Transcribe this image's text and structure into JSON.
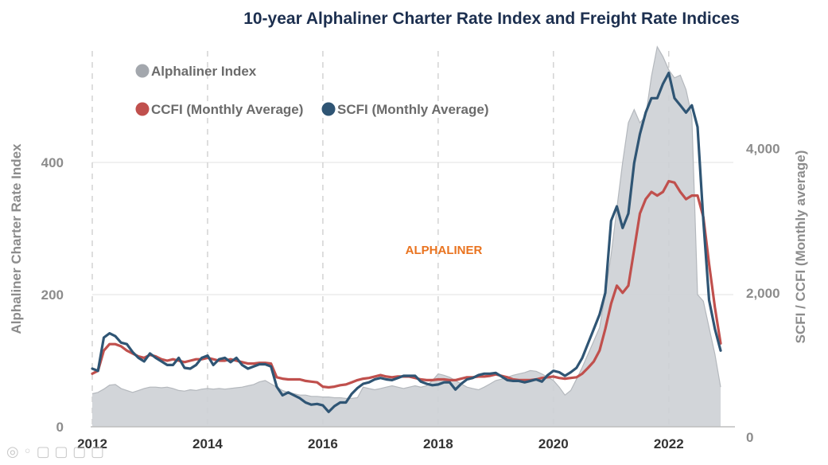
{
  "chart_data": {
    "type": "line",
    "title": "10-year Alphaliner Charter Rate Index and Freight Rate Indices",
    "ylabel_left": "Alphaliner Charter Rate Index",
    "ylabel_right": "SCFI / CCFI (Monthly average)",
    "ylim_left": [
      0,
      600
    ],
    "ylim_right": [
      0,
      5200
    ],
    "xlim": [
      2012,
      2022.9
    ],
    "x_ticks": [
      "2012",
      "2014",
      "2016",
      "2018",
      "2020",
      "2022"
    ],
    "y_left_ticks": [
      "0",
      "200",
      "400"
    ],
    "y_right_ticks": [
      "0",
      "2,000",
      "4,000"
    ],
    "legend": [
      {
        "label": "Alphaliner Index",
        "color": "#a3a7ad"
      },
      {
        "label": "CCFI (Monthly Average)",
        "color": "#c0504d"
      },
      {
        "label": "SCFI (Monthly Average)",
        "color": "#2f5574"
      }
    ],
    "watermark": "ALPHALINER",
    "series": [
      {
        "name": "Alphaliner Index",
        "axis": "left",
        "color": "#a3a7ad",
        "x": [
          2012.0,
          2012.1,
          2012.2,
          2012.3,
          2012.4,
          2012.5,
          2012.6,
          2012.7,
          2012.8,
          2012.9,
          2013.0,
          2013.1,
          2013.2,
          2013.3,
          2013.4,
          2013.5,
          2013.6,
          2013.7,
          2013.8,
          2013.9,
          2014.0,
          2014.1,
          2014.2,
          2014.3,
          2014.4,
          2014.5,
          2014.6,
          2014.7,
          2014.8,
          2014.9,
          2015.0,
          2015.1,
          2015.2,
          2015.3,
          2015.4,
          2015.5,
          2015.6,
          2015.7,
          2015.8,
          2015.9,
          2016.0,
          2016.1,
          2016.2,
          2016.3,
          2016.4,
          2016.5,
          2016.6,
          2016.7,
          2016.8,
          2016.9,
          2017.0,
          2017.1,
          2017.2,
          2017.3,
          2017.4,
          2017.5,
          2017.6,
          2017.7,
          2017.8,
          2017.9,
          2018.0,
          2018.1,
          2018.2,
          2018.3,
          2018.4,
          2018.5,
          2018.6,
          2018.7,
          2018.8,
          2018.9,
          2019.0,
          2019.1,
          2019.2,
          2019.3,
          2019.4,
          2019.5,
          2019.6,
          2019.7,
          2019.8,
          2019.9,
          2020.0,
          2020.1,
          2020.2,
          2020.3,
          2020.4,
          2020.5,
          2020.6,
          2020.7,
          2020.8,
          2020.9,
          2021.0,
          2021.1,
          2021.2,
          2021.3,
          2021.4,
          2021.5,
          2021.6,
          2021.7,
          2021.8,
          2021.9,
          2022.0,
          2022.1,
          2022.2,
          2022.3,
          2022.4,
          2022.5,
          2022.6,
          2022.7,
          2022.8,
          2022.9
        ],
        "values": [
          50,
          52,
          57,
          63,
          64,
          58,
          55,
          52,
          55,
          58,
          60,
          60,
          59,
          60,
          58,
          55,
          54,
          56,
          55,
          57,
          58,
          57,
          58,
          57,
          58,
          59,
          60,
          62,
          64,
          68,
          70,
          65,
          60,
          55,
          52,
          50,
          48,
          48,
          46,
          46,
          45,
          45,
          44,
          44,
          43,
          43,
          44,
          60,
          58,
          56,
          58,
          60,
          62,
          60,
          58,
          60,
          62,
          60,
          62,
          70,
          80,
          78,
          75,
          70,
          65,
          60,
          58,
          56,
          60,
          65,
          70,
          72,
          75,
          78,
          80,
          82,
          85,
          84,
          80,
          75,
          70,
          60,
          48,
          55,
          72,
          90,
          110,
          130,
          150,
          200,
          260,
          330,
          400,
          460,
          480,
          460,
          470,
          530,
          575,
          560,
          540,
          528,
          532,
          510,
          470,
          200,
          190,
          150,
          110,
          60
        ]
      },
      {
        "name": "CCFI (Monthly Average)",
        "axis": "right",
        "color": "#c0504d",
        "x": [
          2012.0,
          2012.1,
          2012.2,
          2012.3,
          2012.4,
          2012.5,
          2012.6,
          2012.7,
          2012.8,
          2012.9,
          2013.0,
          2013.1,
          2013.2,
          2013.3,
          2013.4,
          2013.5,
          2013.6,
          2013.7,
          2013.8,
          2013.9,
          2014.0,
          2014.1,
          2014.2,
          2014.3,
          2014.4,
          2014.5,
          2014.6,
          2014.7,
          2014.8,
          2014.9,
          2015.0,
          2015.1,
          2015.2,
          2015.3,
          2015.4,
          2015.5,
          2015.6,
          2015.7,
          2015.8,
          2015.9,
          2016.0,
          2016.1,
          2016.2,
          2016.3,
          2016.4,
          2016.5,
          2016.6,
          2016.7,
          2016.8,
          2016.9,
          2017.0,
          2017.1,
          2017.2,
          2017.3,
          2017.4,
          2017.5,
          2017.6,
          2017.7,
          2017.8,
          2017.9,
          2018.0,
          2018.1,
          2018.2,
          2018.3,
          2018.4,
          2018.5,
          2018.6,
          2018.7,
          2018.8,
          2018.9,
          2019.0,
          2019.1,
          2019.2,
          2019.3,
          2019.4,
          2019.5,
          2019.6,
          2019.7,
          2019.8,
          2019.9,
          2020.0,
          2020.1,
          2020.2,
          2020.3,
          2020.4,
          2020.5,
          2020.6,
          2020.7,
          2020.8,
          2020.9,
          2021.0,
          2021.1,
          2021.2,
          2021.3,
          2021.4,
          2021.5,
          2021.6,
          2021.7,
          2021.8,
          2021.9,
          2022.0,
          2022.1,
          2022.2,
          2022.3,
          2022.4,
          2022.5,
          2022.6,
          2022.7,
          2022.8,
          2022.9
        ],
        "values": [
          880,
          920,
          1200,
          1290,
          1290,
          1260,
          1200,
          1160,
          1120,
          1100,
          1140,
          1120,
          1080,
          1060,
          1080,
          1060,
          1040,
          1060,
          1080,
          1080,
          1100,
          1080,
          1060,
          1060,
          1080,
          1060,
          1040,
          1020,
          1020,
          1030,
          1030,
          1020,
          830,
          810,
          800,
          800,
          800,
          780,
          770,
          760,
          700,
          690,
          700,
          720,
          730,
          760,
          790,
          810,
          820,
          840,
          860,
          840,
          830,
          840,
          840,
          840,
          820,
          800,
          790,
          790,
          800,
          800,
          790,
          790,
          810,
          830,
          830,
          840,
          840,
          850,
          870,
          850,
          830,
          800,
          790,
          790,
          790,
          800,
          820,
          830,
          840,
          820,
          810,
          820,
          830,
          880,
          960,
          1050,
          1200,
          1500,
          1850,
          2100,
          2000,
          2100,
          2600,
          3100,
          3300,
          3400,
          3350,
          3400,
          3550,
          3530,
          3400,
          3300,
          3350,
          3350,
          3050,
          2400,
          1800,
          1300
        ]
      },
      {
        "name": "SCFI (Monthly Average)",
        "axis": "right",
        "color": "#2f5574",
        "x": [
          2012.0,
          2012.1,
          2012.2,
          2012.3,
          2012.4,
          2012.5,
          2012.6,
          2012.7,
          2012.8,
          2012.9,
          2013.0,
          2013.1,
          2013.2,
          2013.3,
          2013.4,
          2013.5,
          2013.6,
          2013.7,
          2013.8,
          2013.9,
          2014.0,
          2014.1,
          2014.2,
          2014.3,
          2014.4,
          2014.5,
          2014.6,
          2014.7,
          2014.8,
          2014.9,
          2015.0,
          2015.1,
          2015.2,
          2015.3,
          2015.4,
          2015.5,
          2015.6,
          2015.7,
          2015.8,
          2015.9,
          2016.0,
          2016.1,
          2016.2,
          2016.3,
          2016.4,
          2016.5,
          2016.6,
          2016.7,
          2016.8,
          2016.9,
          2017.0,
          2017.1,
          2017.2,
          2017.3,
          2017.4,
          2017.5,
          2017.6,
          2017.7,
          2017.8,
          2017.9,
          2018.0,
          2018.1,
          2018.2,
          2018.3,
          2018.4,
          2018.5,
          2018.6,
          2018.7,
          2018.8,
          2018.9,
          2019.0,
          2019.1,
          2019.2,
          2019.3,
          2019.4,
          2019.5,
          2019.6,
          2019.7,
          2019.8,
          2019.9,
          2020.0,
          2020.1,
          2020.2,
          2020.3,
          2020.4,
          2020.5,
          2020.6,
          2020.7,
          2020.8,
          2020.9,
          2021.0,
          2021.1,
          2021.2,
          2021.3,
          2021.4,
          2021.5,
          2021.6,
          2021.7,
          2021.8,
          2021.9,
          2022.0,
          2022.1,
          2022.2,
          2022.3,
          2022.4,
          2022.5,
          2022.6,
          2022.7,
          2022.8,
          2022.9
        ],
        "values": [
          950,
          920,
          1380,
          1440,
          1400,
          1310,
          1290,
          1180,
          1100,
          1050,
          1160,
          1100,
          1050,
          1000,
          1000,
          1100,
          960,
          950,
          1000,
          1100,
          1130,
          1000,
          1080,
          1100,
          1040,
          1100,
          1000,
          950,
          980,
          1010,
          1010,
          980,
          700,
          580,
          620,
          580,
          540,
          480,
          450,
          460,
          440,
          350,
          430,
          480,
          480,
          600,
          680,
          740,
          760,
          800,
          820,
          800,
          790,
          820,
          850,
          850,
          850,
          770,
          740,
          720,
          730,
          760,
          760,
          660,
          740,
          800,
          820,
          860,
          880,
          880,
          890,
          840,
          790,
          780,
          780,
          760,
          780,
          800,
          770,
          860,
          920,
          900,
          850,
          900,
          960,
          1100,
          1300,
          1500,
          1700,
          2000,
          3000,
          3200,
          2900,
          3100,
          3800,
          4200,
          4500,
          4700,
          4700,
          4900,
          5050,
          4700,
          4600,
          4500,
          4600,
          4300,
          3000,
          1900,
          1500,
          1200
        ]
      }
    ]
  }
}
